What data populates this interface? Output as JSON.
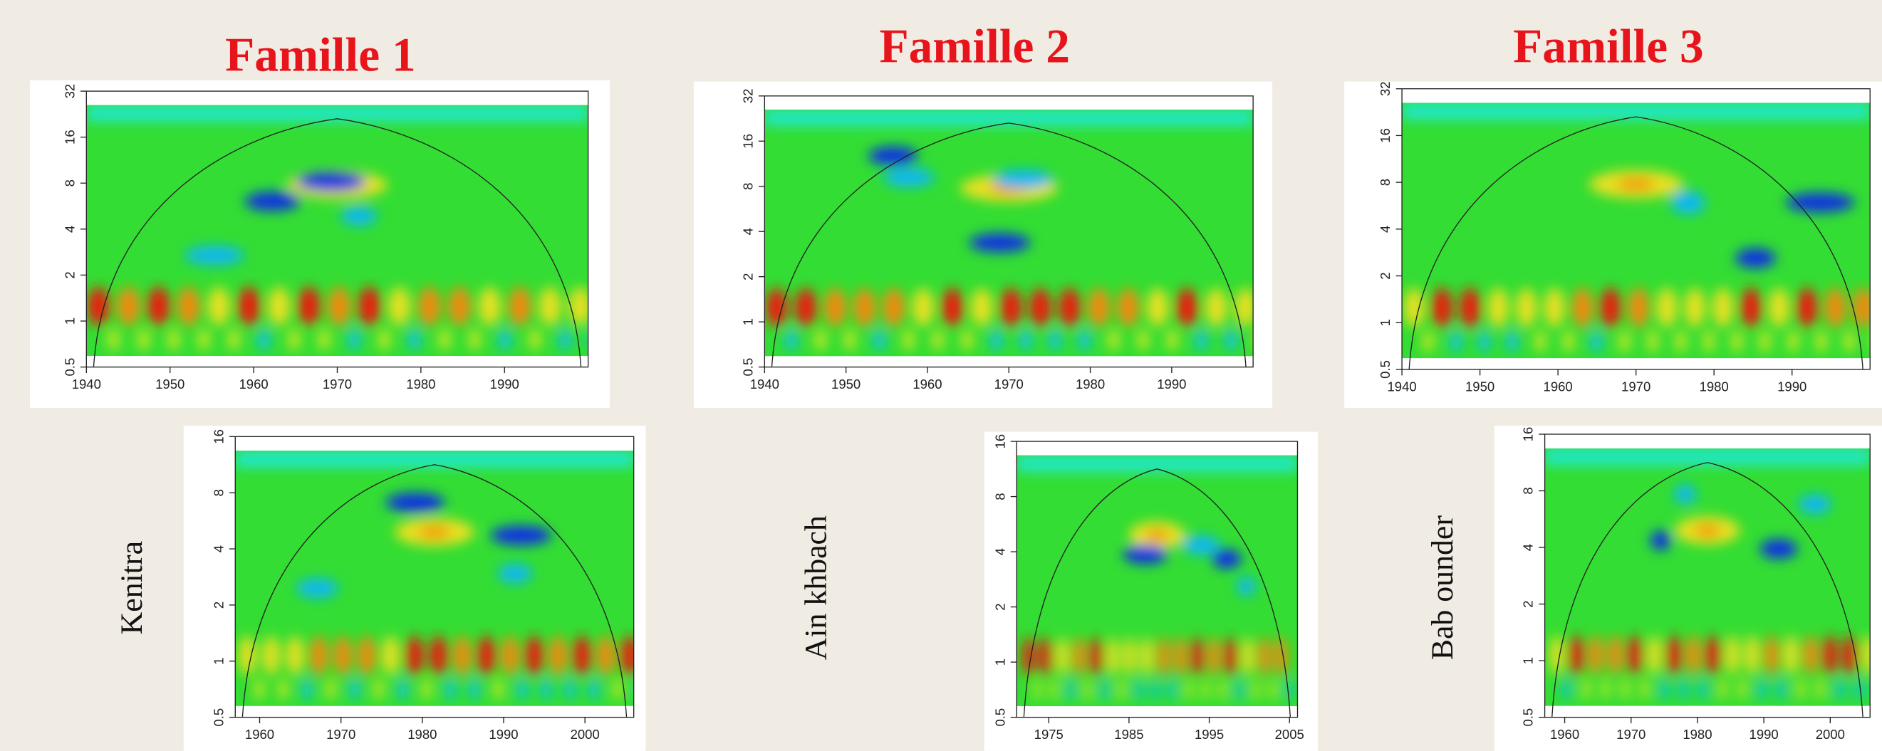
{
  "chart_data": [
    {
      "type": "wavelet",
      "title": "Famille 1",
      "xlim": [
        1940,
        2000
      ],
      "xticks": [
        1940,
        1950,
        1960,
        1970,
        1980,
        1990
      ],
      "ylim": [
        0.5,
        32
      ],
      "yticks": [
        0.5,
        1,
        2,
        4,
        8,
        16,
        32
      ],
      "log_y": true
    },
    {
      "type": "wavelet",
      "title": "Famille 2",
      "xlim": [
        1940,
        2000
      ],
      "xticks": [
        1940,
        1950,
        1960,
        1970,
        1980,
        1990
      ],
      "ylim": [
        0.5,
        32
      ],
      "yticks": [
        0.5,
        1,
        2,
        4,
        8,
        16,
        32
      ],
      "log_y": true
    },
    {
      "type": "wavelet",
      "title": "Famille 3",
      "xlim": [
        1940,
        2000
      ],
      "xticks": [
        1940,
        1950,
        1960,
        1970,
        1980,
        1990
      ],
      "ylim": [
        0.5,
        32
      ],
      "yticks": [
        0.5,
        1,
        2,
        4,
        8,
        16,
        32
      ],
      "log_y": true
    },
    {
      "type": "wavelet",
      "ylabel": "Kenitra",
      "xlim": [
        1957,
        2006
      ],
      "xticks": [
        1960,
        1970,
        1980,
        1990,
        2000
      ],
      "ylim": [
        0.5,
        16
      ],
      "yticks": [
        0.5,
        1,
        2,
        4,
        8,
        16
      ],
      "log_y": true
    },
    {
      "type": "wavelet",
      "ylabel": "Ain khbach",
      "xlim": [
        1971,
        2006
      ],
      "xticks": [
        1975,
        1985,
        1995,
        2005
      ],
      "ylim": [
        0.5,
        16
      ],
      "yticks": [
        0.5,
        1,
        2,
        4,
        8,
        16
      ],
      "log_y": true
    },
    {
      "type": "wavelet",
      "ylabel": "Bab ounder",
      "xlim": [
        1957,
        2006
      ],
      "xticks": [
        1960,
        1970,
        1980,
        1990,
        2000
      ],
      "ylim": [
        0.5,
        16
      ],
      "yticks": [
        0.5,
        1,
        2,
        4,
        8,
        16
      ],
      "log_y": true
    }
  ]
}
